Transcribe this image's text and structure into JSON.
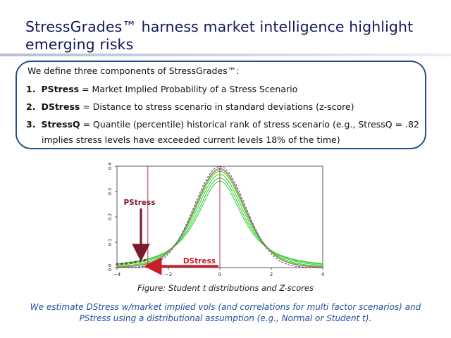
{
  "slide": {
    "title": "StressGrades™ harness market intelligence highlight emerging risks"
  },
  "callout": {
    "intro": "We define three components of StressGrades™:",
    "items": [
      {
        "num": "1.",
        "term": "PStress",
        "definition": " = Market Implied Probability of a Stress Scenario"
      },
      {
        "num": "2.",
        "term": "DStress",
        "definition": " = Distance to stress scenario in standard deviations (z-score)"
      },
      {
        "num": "3.",
        "term": "StressQ",
        "definition": " = Quantile (percentile) historical rank of stress scenario (e.g., StressQ = .82"
      }
    ],
    "item3_continuation": "implies stress levels have exceeded current levels 18% of the time)"
  },
  "figure": {
    "caption": "Figure: Student t distributions and Z-scores",
    "annotations": {
      "pstress_label": "PStress",
      "dstress_label": "DStress"
    },
    "colors": {
      "annotation": "#7a1b2e",
      "arrow": "#c81e2a",
      "stress_line": "#b01e3a",
      "normal_curve": "#3a3ad8",
      "student_t_curves": "#33cc33",
      "highlight_curve": "#e06020"
    }
  },
  "chart_data": {
    "type": "line",
    "title": "",
    "xlabel": "",
    "ylabel": "",
    "xlim": [
      -4,
      4
    ],
    "ylim": [
      0,
      0.4
    ],
    "x_ticks": [
      "−4",
      "−2",
      "0",
      "2",
      "4"
    ],
    "y_ticks": [
      "0.0",
      "0.1",
      "0.2",
      "0.3",
      "0.4"
    ],
    "x_tick_values": [
      -4,
      -2,
      0,
      2,
      4
    ],
    "y_tick_values": [
      0,
      0.1,
      0.2,
      0.3,
      0.4
    ],
    "stress_z": -2.8,
    "reference_x": 0,
    "series": [
      {
        "color": "#3a3ad8",
        "dash": true,
        "dist": "normal",
        "df": 0
      },
      {
        "color": "#e06020",
        "dash": false,
        "dist": "t",
        "df": 12
      },
      {
        "color": "#33cc33",
        "dash": false,
        "dist": "t",
        "df": 8
      },
      {
        "color": "#33cc33",
        "dash": false,
        "dist": "t",
        "df": 5
      },
      {
        "color": "#33cc33",
        "dash": false,
        "dist": "t",
        "df": 3
      },
      {
        "color": "#33cc33",
        "dash": false,
        "dist": "t",
        "df": 2
      },
      {
        "color": "#33cc33",
        "dash": false,
        "dist": "t",
        "df": 1.5
      }
    ]
  }
}
